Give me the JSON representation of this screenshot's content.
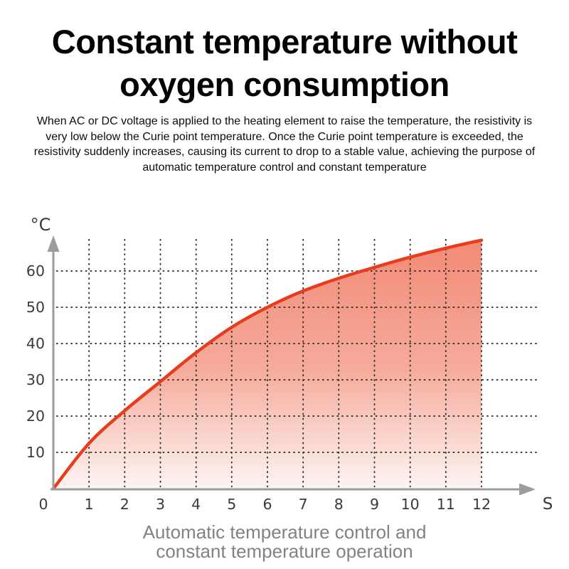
{
  "title": {
    "lines": [
      "Constant temperature without",
      "oxygen consumption"
    ]
  },
  "description": {
    "lines": [
      "When AC or DC voltage is applied to the heating element to raise the temperature, the resistivity is",
      "very low below the Curie point temperature. Once the Curie point temperature is exceeded, the",
      "resistivity suddenly increases, causing its current to drop to a stable value, achieving the purpose of",
      "automatic temperature control and constant temperature"
    ]
  },
  "caption": {
    "lines": [
      "Automatic temperature control and",
      "constant temperature operation"
    ]
  },
  "chart_data": {
    "type": "area",
    "title": "",
    "xlabel": "S",
    "ylabel": "°C",
    "x": [
      0,
      1,
      2,
      3,
      4,
      5,
      6,
      7,
      8,
      9,
      10,
      11,
      12
    ],
    "y": [
      0,
      12.5,
      21.5,
      29.5,
      37.5,
      44.5,
      50,
      54.5,
      58,
      61,
      63.8,
      66.3,
      68.5
    ],
    "x_ticks": [
      "0",
      "1",
      "2",
      "3",
      "4",
      "5",
      "6",
      "7",
      "8",
      "9",
      "10",
      "11",
      "12"
    ],
    "y_ticks": [
      10,
      20,
      30,
      40,
      50,
      60
    ],
    "xlim": [
      0,
      13.5
    ],
    "ylim": [
      0,
      70
    ],
    "grid": "dotted",
    "legend": "none",
    "series_name": "temperature-rise-curve",
    "colors": {
      "line": "#e73c1e",
      "fill_top": "#f28a76",
      "fill_mid": "#f5ab9b",
      "fill_bottom": "#fdf4f2",
      "axis": "#9c9c9c",
      "grid": "#2b2b2b",
      "tick_text": "#3b3b3b",
      "caption_text": "#828282"
    }
  }
}
